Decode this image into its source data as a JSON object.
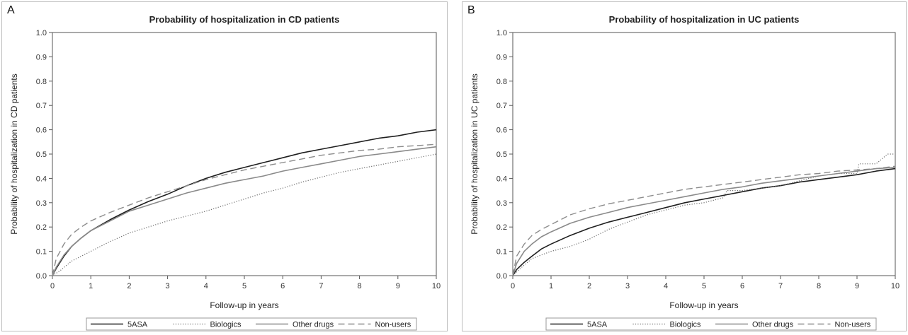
{
  "chart_data": [
    {
      "panel_label": "A",
      "type": "line",
      "title": "Probability of hospitalization in CD patients",
      "xlabel": "Follow-up in years",
      "ylabel": "Probability of hospitalization in CD patients",
      "xlim": [
        0,
        10
      ],
      "ylim": [
        0,
        1
      ],
      "xticks": [
        "0",
        "1",
        "2",
        "3",
        "4",
        "5",
        "6",
        "7",
        "8",
        "9",
        "10"
      ],
      "yticks": [
        "0.0",
        "0.1",
        "0.2",
        "0.3",
        "0.4",
        "0.5",
        "0.6",
        "0.7",
        "0.8",
        "0.9",
        "1.0"
      ],
      "grid": false,
      "legend_position": "bottom",
      "series": [
        {
          "name": "5ASA",
          "style": "solid-dark",
          "x": [
            0,
            0.1,
            0.3,
            0.5,
            0.75,
            1,
            1.5,
            2,
            2.5,
            3,
            3.5,
            4,
            4.5,
            5,
            5.5,
            6,
            6.5,
            7,
            7.5,
            8,
            8.5,
            9,
            9.5,
            10
          ],
          "y": [
            0,
            0.03,
            0.08,
            0.12,
            0.155,
            0.185,
            0.23,
            0.27,
            0.305,
            0.335,
            0.37,
            0.4,
            0.425,
            0.445,
            0.465,
            0.485,
            0.505,
            0.52,
            0.535,
            0.55,
            0.565,
            0.575,
            0.59,
            0.6
          ]
        },
        {
          "name": "Biologics",
          "style": "dotted",
          "x": [
            0,
            0.2,
            0.5,
            1,
            1.5,
            2,
            2.5,
            3,
            3.5,
            4,
            4.5,
            5,
            5.5,
            6,
            6.5,
            7,
            7.5,
            8,
            8.5,
            9,
            9.5,
            10
          ],
          "y": [
            0,
            0.02,
            0.06,
            0.1,
            0.14,
            0.175,
            0.2,
            0.225,
            0.245,
            0.265,
            0.29,
            0.315,
            0.34,
            0.36,
            0.385,
            0.405,
            0.425,
            0.44,
            0.455,
            0.47,
            0.485,
            0.5
          ]
        },
        {
          "name": "Other drugs",
          "style": "solid-gray",
          "x": [
            0,
            0.1,
            0.3,
            0.5,
            0.75,
            1,
            1.5,
            2,
            2.5,
            3,
            3.5,
            4,
            4.5,
            5,
            5.5,
            6,
            6.5,
            7,
            7.5,
            8,
            8.5,
            9,
            9.5,
            10
          ],
          "y": [
            0,
            0.035,
            0.085,
            0.12,
            0.155,
            0.185,
            0.225,
            0.265,
            0.29,
            0.315,
            0.34,
            0.36,
            0.38,
            0.395,
            0.41,
            0.43,
            0.445,
            0.46,
            0.475,
            0.49,
            0.5,
            0.51,
            0.52,
            0.53
          ]
        },
        {
          "name": "Non-users",
          "style": "dashed",
          "x": [
            0,
            0.1,
            0.3,
            0.5,
            0.75,
            1,
            1.5,
            2,
            2.5,
            3,
            3.5,
            4,
            4.5,
            5,
            5.5,
            6,
            6.5,
            7,
            7.5,
            8,
            8.5,
            9,
            9.5,
            10
          ],
          "y": [
            0,
            0.07,
            0.13,
            0.17,
            0.2,
            0.225,
            0.26,
            0.29,
            0.32,
            0.345,
            0.37,
            0.395,
            0.415,
            0.435,
            0.45,
            0.465,
            0.48,
            0.495,
            0.505,
            0.515,
            0.52,
            0.53,
            0.535,
            0.54
          ]
        }
      ],
      "legend": [
        "5ASA",
        "Biologics",
        "Other drugs",
        "Non-users"
      ]
    },
    {
      "panel_label": "B",
      "type": "line",
      "title": "Probability of hospitalization in UC patients",
      "xlabel": "Follow-up in years",
      "ylabel": "Probability of hospitalization in UC patients",
      "xlim": [
        0,
        10
      ],
      "ylim": [
        0,
        1
      ],
      "xticks": [
        "0",
        "1",
        "2",
        "3",
        "4",
        "5",
        "6",
        "7",
        "8",
        "9",
        "10"
      ],
      "yticks": [
        "0.0",
        "0.1",
        "0.2",
        "0.3",
        "0.4",
        "0.5",
        "0.6",
        "0.7",
        "0.8",
        "0.9",
        "1.0"
      ],
      "grid": false,
      "legend_position": "bottom",
      "series": [
        {
          "name": "5ASA",
          "style": "solid-dark",
          "x": [
            0,
            0.1,
            0.3,
            0.5,
            0.75,
            1,
            1.5,
            2,
            2.5,
            3,
            3.5,
            4,
            4.5,
            5,
            5.5,
            6,
            6.5,
            7,
            7.5,
            8,
            8.5,
            9,
            9.5,
            10
          ],
          "y": [
            0,
            0.025,
            0.055,
            0.08,
            0.11,
            0.13,
            0.165,
            0.195,
            0.22,
            0.24,
            0.26,
            0.28,
            0.3,
            0.315,
            0.33,
            0.345,
            0.36,
            0.37,
            0.385,
            0.395,
            0.405,
            0.415,
            0.43,
            0.44
          ]
        },
        {
          "name": "Biologics",
          "style": "dotted",
          "x": [
            0,
            0.2,
            0.5,
            1,
            1.5,
            2,
            2.5,
            3,
            3.5,
            4,
            4.5,
            5,
            5.5,
            5.6,
            6,
            6.5,
            7,
            7.5,
            8,
            8.5,
            9,
            9.05,
            9.5,
            9.8,
            10
          ],
          "y": [
            0,
            0.03,
            0.07,
            0.1,
            0.12,
            0.15,
            0.19,
            0.22,
            0.25,
            0.27,
            0.29,
            0.3,
            0.32,
            0.35,
            0.35,
            0.36,
            0.37,
            0.39,
            0.41,
            0.42,
            0.42,
            0.46,
            0.46,
            0.5,
            0.5
          ]
        },
        {
          "name": "Other drugs",
          "style": "solid-gray",
          "x": [
            0,
            0.1,
            0.3,
            0.5,
            0.75,
            1,
            1.5,
            2,
            2.5,
            3,
            3.5,
            4,
            4.5,
            5,
            5.5,
            6,
            6.5,
            7,
            7.5,
            8,
            8.5,
            9,
            9.5,
            10
          ],
          "y": [
            0,
            0.05,
            0.1,
            0.13,
            0.16,
            0.18,
            0.215,
            0.24,
            0.26,
            0.28,
            0.295,
            0.31,
            0.325,
            0.34,
            0.355,
            0.365,
            0.38,
            0.39,
            0.4,
            0.41,
            0.42,
            0.43,
            0.44,
            0.445
          ]
        },
        {
          "name": "Non-users",
          "style": "dashed",
          "x": [
            0,
            0.1,
            0.3,
            0.5,
            0.75,
            1,
            1.5,
            2,
            2.5,
            3,
            3.5,
            4,
            4.5,
            5,
            5.5,
            6,
            6.5,
            7,
            7.5,
            8,
            8.5,
            9,
            9.5,
            10
          ],
          "y": [
            0,
            0.08,
            0.13,
            0.165,
            0.19,
            0.21,
            0.25,
            0.275,
            0.295,
            0.31,
            0.325,
            0.34,
            0.355,
            0.365,
            0.375,
            0.385,
            0.395,
            0.405,
            0.415,
            0.42,
            0.43,
            0.435,
            0.44,
            0.45
          ]
        }
      ],
      "legend": [
        "5ASA",
        "Biologics",
        "Other drugs",
        "Non-users"
      ]
    }
  ]
}
